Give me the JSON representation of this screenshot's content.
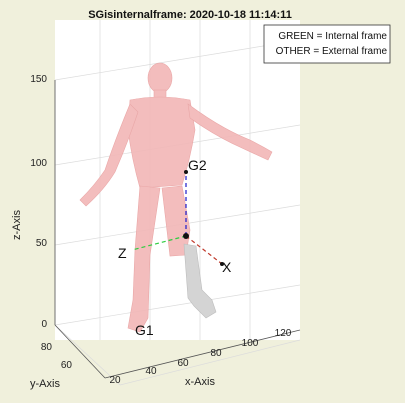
{
  "window": {
    "background_color": "#f0f0dc"
  },
  "chart_data": {
    "type": "3d-surface",
    "title": "SGisinternalframe: 2020-10-18 11:14:11",
    "xlabel": "x-Axis",
    "ylabel": "y-Axis",
    "zlabel": "z-Axis",
    "x_ticks": [
      "20",
      "40",
      "60",
      "80",
      "100",
      "120"
    ],
    "y_ticks": [
      "60",
      "80"
    ],
    "z_ticks": [
      "0",
      "50",
      "100",
      "150"
    ],
    "grid": true,
    "legend": {
      "position": "top-right",
      "entries": [
        "GREEN = Internal frame",
        "OTHER = External frame"
      ]
    },
    "frame_labels": {
      "origin_label": "G1",
      "frame_label": "G2",
      "x_axis": "X",
      "z_axis": "Z"
    },
    "colors": {
      "body": "#f2b8b8",
      "limb_segment": "#d4d4d4",
      "frame_x": "#c0392b",
      "frame_y": "#1c1ccc",
      "frame_z": "#2ecc40"
    }
  }
}
